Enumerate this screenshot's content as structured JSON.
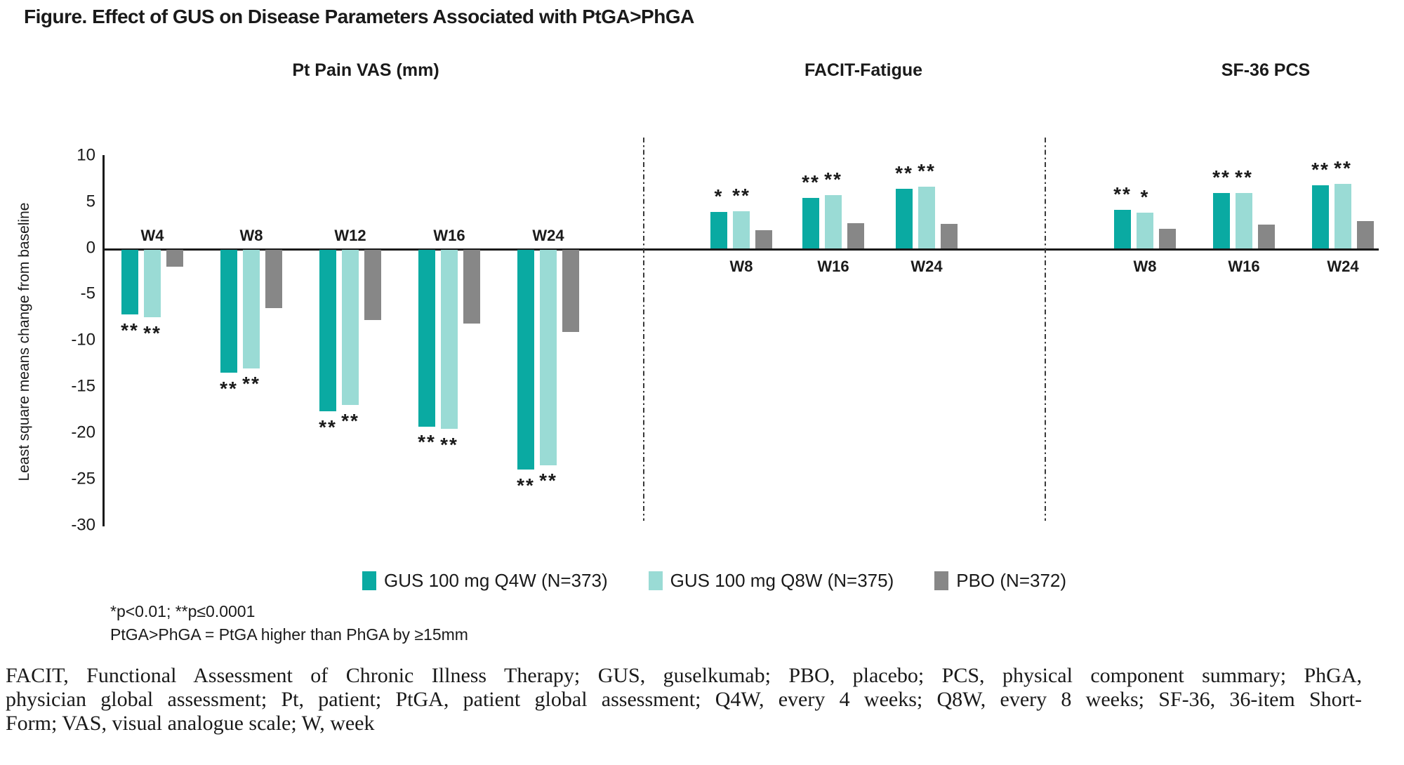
{
  "figure_title": "Figure. Effect of GUS on Disease Parameters Associated with PtGA>PhGA",
  "y_axis": {
    "label": "Least square means change from baseline",
    "ticks": [
      10,
      5,
      0,
      -5,
      -10,
      -15,
      -20,
      -25,
      -30
    ]
  },
  "legend": [
    {
      "label": "GUS 100 mg Q4W (N=373)",
      "color": "#0aaaa2",
      "swatch_icon": "filled-square-icon"
    },
    {
      "label": "GUS 100 mg Q8W (N=375)",
      "color": "#9adbd5",
      "swatch_icon": "filled-square-icon"
    },
    {
      "label": "PBO (N=372)",
      "color": "#878787",
      "swatch_icon": "filled-square-icon"
    }
  ],
  "colors": {
    "axis": "#1a1a1a",
    "q4w": "#0aaaa2",
    "q8w": "#9adbd5",
    "pbo": "#878787"
  },
  "footnotes": {
    "significance": "*p<0.01; **p≤0.0001",
    "definition": "PtGA>PhGA = PtGA higher than PhGA by ≥15mm"
  },
  "abbreviations": {
    "lines": [
      "FACIT, Functional Assessment of Chronic Illness Therapy; GUS, guselkumab; PBO, placebo; PCS, physical component summary; PhGA,",
      "physician global assessment; Pt, patient; PtGA, patient global assessment; Q4W, every 4 weeks; Q8W, every 8 weeks; SF-36, 36-item Short-",
      "Form; VAS, visual analogue scale; W, week"
    ]
  },
  "chart_data": {
    "type": "bar",
    "title": "Figure. Effect of GUS on Disease Parameters Associated with PtGA>PhGA",
    "ylabel": "Least square means change from baseline",
    "ylim": [
      -30,
      10
    ],
    "ytick_step": 5,
    "grid": false,
    "legend_position": "bottom",
    "series_names": [
      "GUS 100 mg Q4W (N=373)",
      "GUS 100 mg Q8W (N=375)",
      "PBO (N=372)"
    ],
    "panels": [
      {
        "title": "Pt Pain VAS (mm)",
        "categories": [
          "W4",
          "W8",
          "W12",
          "W16",
          "W24"
        ],
        "series": [
          {
            "name": "GUS 100 mg Q4W (N=373)",
            "values": [
              -7.0,
              -13.3,
              -17.5,
              -19.1,
              -23.8
            ],
            "significance": [
              "**",
              "**",
              "**",
              "**",
              "**"
            ]
          },
          {
            "name": "GUS 100 mg Q8W (N=375)",
            "values": [
              -7.3,
              -12.8,
              -16.8,
              -19.4,
              -23.3
            ],
            "significance": [
              "**",
              "**",
              "**",
              "**",
              "**"
            ]
          },
          {
            "name": "PBO (N=372)",
            "values": [
              -1.8,
              -6.3,
              -7.6,
              -8.0,
              -8.9
            ],
            "significance": [
              "",
              "",
              "",
              "",
              ""
            ]
          }
        ]
      },
      {
        "title": "FACIT-Fatigue",
        "categories": [
          "W8",
          "W16",
          "W24"
        ],
        "series": [
          {
            "name": "GUS 100 mg Q4W (N=373)",
            "values": [
              4.0,
              5.5,
              6.5
            ],
            "significance": [
              "*",
              "**",
              "**"
            ]
          },
          {
            "name": "GUS 100 mg Q8W (N=375)",
            "values": [
              4.1,
              5.8,
              6.7
            ],
            "significance": [
              "**",
              "**",
              "**"
            ]
          },
          {
            "name": "PBO (N=372)",
            "values": [
              2.0,
              2.8,
              2.7
            ],
            "significance": [
              "",
              "",
              ""
            ]
          }
        ]
      },
      {
        "title": "SF-36 PCS",
        "categories": [
          "W8",
          "W16",
          "W24"
        ],
        "series": [
          {
            "name": "GUS 100 mg Q4W (N=373)",
            "values": [
              4.2,
              6.0,
              6.9
            ],
            "significance": [
              "**",
              "**",
              "**"
            ]
          },
          {
            "name": "GUS 100 mg Q8W (N=375)",
            "values": [
              3.9,
              6.0,
              7.0
            ],
            "significance": [
              "*",
              "**",
              "**"
            ]
          },
          {
            "name": "PBO (N=372)",
            "values": [
              2.2,
              2.6,
              3.0
            ],
            "significance": [
              "",
              "",
              ""
            ]
          }
        ]
      }
    ]
  }
}
